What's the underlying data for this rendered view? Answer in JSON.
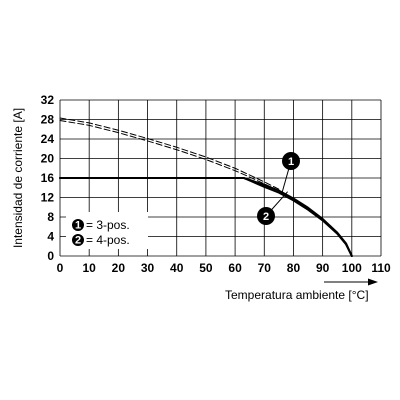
{
  "chart_data": {
    "type": "line",
    "xlabel": "Temperatura ambiente [°C]",
    "ylabel": "Intensidad de corriente [A]",
    "xlim": [
      0,
      110
    ],
    "ylim": [
      0,
      32
    ],
    "x_ticks": [
      "0",
      "10",
      "20",
      "30",
      "40",
      "50",
      "60",
      "70",
      "80",
      "90",
      "100",
      "110"
    ],
    "y_ticks": [
      "0",
      "4",
      "8",
      "12",
      "16",
      "20",
      "24",
      "28",
      "32"
    ],
    "grid": true,
    "legend_position": "bottom-left",
    "legend": [
      {
        "marker": "1",
        "text": "= 3-pos."
      },
      {
        "marker": "2",
        "text": "= 4-pos."
      }
    ],
    "series": [
      {
        "marker": "1",
        "style": "solid",
        "x": [
          0,
          63,
          70,
          75,
          80,
          85,
          90,
          95,
          98,
          100
        ],
        "y": [
          16,
          16,
          14.6,
          13.4,
          11.8,
          9.9,
          7.6,
          4.8,
          2.6,
          0
        ]
      },
      {
        "marker": "2",
        "style": "solid",
        "x": [
          0,
          63,
          70,
          75,
          80,
          85,
          90,
          95,
          98,
          100
        ],
        "y": [
          16,
          16,
          14.2,
          13,
          11.4,
          9.5,
          7.3,
          4.6,
          2.4,
          0
        ]
      },
      {
        "marker": "1",
        "style": "dashed",
        "x": [
          0,
          10,
          20,
          30,
          40,
          50,
          60,
          65,
          70,
          75
        ],
        "y": [
          28.3,
          27.3,
          25.8,
          24.1,
          22.3,
          20.3,
          18.0,
          16.6,
          15.2,
          13.7
        ]
      },
      {
        "marker": "2",
        "style": "dashed",
        "x": [
          0,
          10,
          20,
          30,
          40,
          50,
          60,
          65,
          70,
          75
        ],
        "y": [
          27.8,
          26.8,
          25.3,
          23.6,
          21.8,
          19.8,
          17.5,
          16.2,
          14.8,
          13.4
        ]
      }
    ],
    "callouts": [
      {
        "marker": "1",
        "anchor": [
          76,
          12.8
        ]
      },
      {
        "marker": "2",
        "anchor": [
          78,
          13.2
        ]
      }
    ],
    "colors": {
      "line": "#000000",
      "background": "#ffffff"
    }
  }
}
